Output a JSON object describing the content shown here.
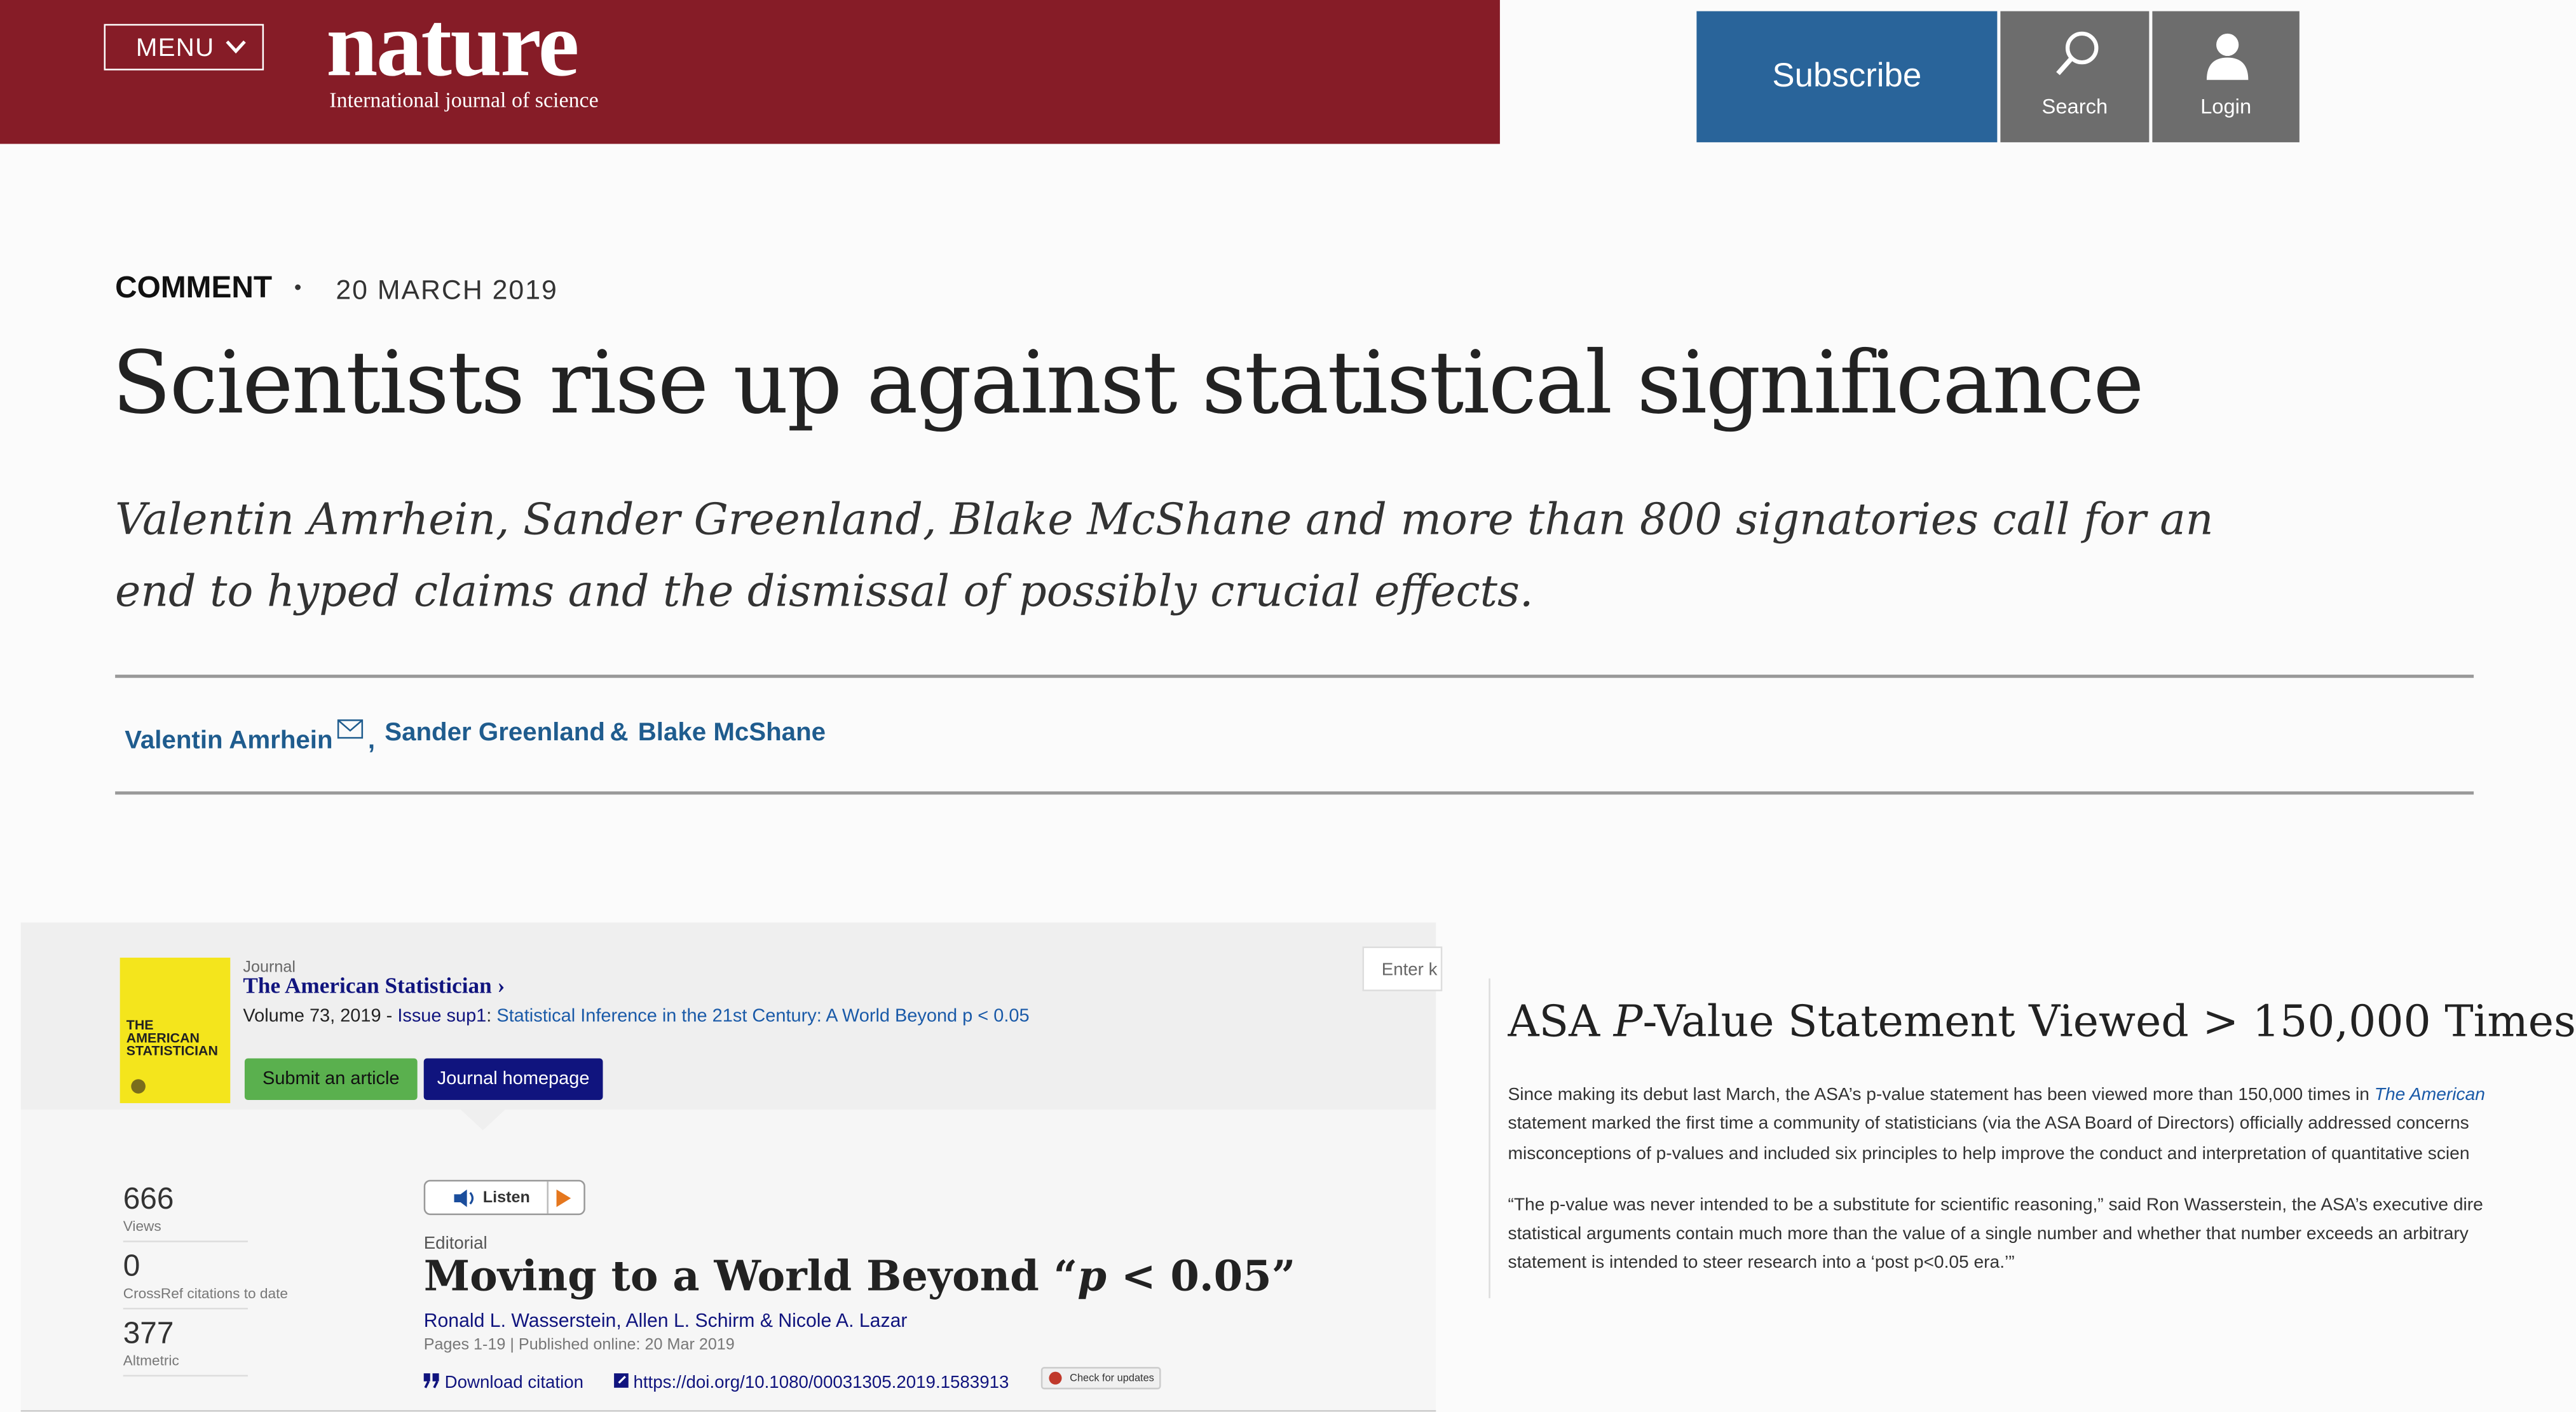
{
  "header": {
    "menu": "MENU",
    "logo": "nature",
    "tagline": "International journal of science",
    "subscribe": "Subscribe",
    "search": "Search",
    "login": "Login"
  },
  "article": {
    "type": "COMMENT",
    "separator": "•",
    "date": "20 MARCH 2019",
    "title": "Scientists rise up against statistical significance",
    "standfirst_lines": [
      "Valentin Amrhein, Sander Greenland, Blake McShane and more than 800 signatories call for an",
      "end to hyped claims and the dismissal of possibly crucial effects."
    ],
    "authors": [
      {
        "name": "Valentin Amrhein",
        "after": ","
      },
      {
        "name": "Sander Greenland",
        "after": "&"
      },
      {
        "name": "Blake McShane",
        "after": ""
      }
    ]
  },
  "journal_panel": {
    "label": "Journal",
    "name": "The American Statistician",
    "cover_text": "THE AMERICAN STATISTICIAN",
    "volume": "Volume 73, 2019 - ",
    "issue": "Issue sup1",
    "issue_sep": ": ",
    "issue_title": "Statistical Inference in the 21st Century: A World Beyond p < 0.05",
    "submit": "Submit an article",
    "homepage": "Journal homepage",
    "search_placeholder": "Enter k",
    "metrics": [
      {
        "value": 666,
        "label": "Views"
      },
      {
        "value": 0,
        "label": "CrossRef citations to date"
      },
      {
        "value": 377,
        "label": "Altmetric"
      }
    ],
    "listen": "Listen",
    "section": "Editorial",
    "title_parts": [
      "Moving to a World Beyond “",
      "p",
      " < 0.05”"
    ],
    "authors": "Ronald L. Wasserstein, Allen L. Schirm & Nicole A. Lazar",
    "pages": "Pages 1-19 | Published online: 20 Mar 2019",
    "download": "Download citation",
    "doi": "https://doi.org/10.1080/00031305.2019.1583913",
    "check_updates": "Check for updates"
  },
  "asa_panel": {
    "title_parts": [
      "ASA ",
      "P",
      "-Value Statement Viewed > 150,000 Times"
    ],
    "para1_first": "Since making its debut last March, the ASA’s p-value statement has been viewed more than 150,000 times in ",
    "para1_link": "The American",
    "para1_lines": [
      "statement marked the first time a community of statisticians (via the ASA Board of Directors) officially addressed concerns",
      "misconceptions of p-values and included six principles to help improve the conduct and interpretation of quantitative scien"
    ],
    "para2_lines": [
      "“The p-value was never intended to be a substitute for scientific reasoning,” said Ron Wasserstein, the ASA’s executive dire",
      "statistical arguments contain much more than the value of a single number and whether that number exceeds an arbitrary",
      "statement is intended to steer research into a ‘post p<0.05 era.’”"
    ]
  }
}
